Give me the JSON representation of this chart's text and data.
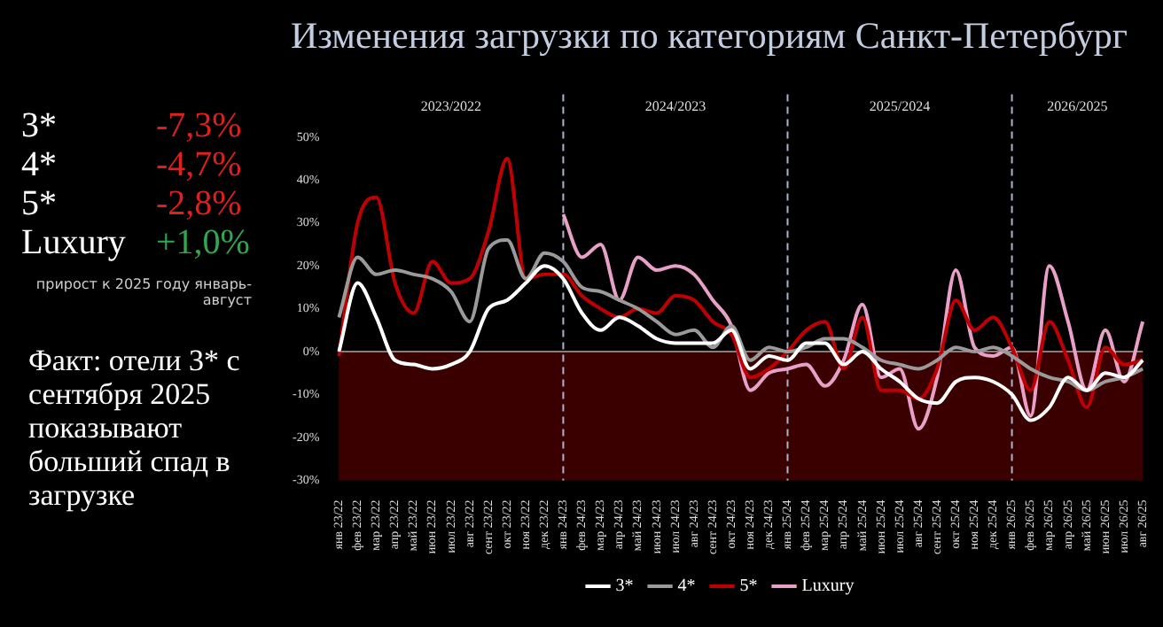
{
  "chart_data": [
    {
      "type": "other",
      "categories": [
        "3*",
        "4*",
        "5*",
        "Luxury"
      ],
      "value_labels": [
        "-7,3%",
        "-4,7%",
        "-2,8%",
        "+1,0%"
      ],
      "colors": [
        "#e0201c",
        "#e0201c",
        "#e0201c",
        "#2fa84f"
      ],
      "annotations": [
        "прирост к 2025 году январь-август",
        "Факт: отели 3* с сентября 2025 показывают больший спад в загрузке"
      ]
    },
    {
      "type": "line",
      "title": "Изменения загрузки по категориям Санкт-Петербург",
      "categories": [
        "янв 23/22",
        "фев 23/22",
        "мар 23/22",
        "апр 23/22",
        "май 23/22",
        "июн 23/22",
        "июл 23/22",
        "авг 23/22",
        "сент 23/22",
        "окт 23/22",
        "ноя 23/22",
        "дек 23/22",
        "янв 24/23",
        "фев 24/23",
        "мар 24/23",
        "апр 24/23",
        "май 24/23",
        "июн 24/23",
        "июл 24/23",
        "авг 24/23",
        "сент 24/23",
        "окт 24/23",
        "ноя 24/23",
        "дек 24/23",
        "янв 25/24",
        "фев 25/24",
        "мар 25/24",
        "апр 25/24",
        "май 25/24",
        "июн 25/24",
        "июл 25/24",
        "авг 25/24",
        "сент 25/24",
        "окт 25/24",
        "ноя 25/24",
        "дек 25/24",
        "янв 26/25",
        "фев 26/25",
        "мар 26/25",
        "апр 26/25",
        "май 26/25",
        "июн 26/25",
        "июл 26/25",
        "авг 26/25"
      ],
      "series": [
        {
          "name": "3*",
          "color": "#ffffff",
          "values": [
            0,
            16,
            8,
            -2,
            -3,
            -4,
            -3,
            0,
            10,
            12,
            16,
            20,
            17,
            9,
            5,
            8,
            6,
            3,
            2,
            2,
            2,
            5,
            -4,
            -1,
            -2,
            2,
            2,
            -3,
            0,
            -4,
            -7,
            -11,
            -12,
            -7,
            -6,
            -7,
            -10,
            -16,
            -13,
            -6,
            -9,
            -5,
            -6,
            -2
          ]
        },
        {
          "name": "4*",
          "color": "#9a9a9a",
          "values": [
            8,
            22,
            18,
            19,
            18,
            17,
            14,
            7,
            24,
            26,
            17,
            23,
            21,
            15,
            14,
            12,
            10,
            7,
            4,
            5,
            1,
            6,
            -2,
            1,
            0,
            1,
            3,
            3,
            1,
            -2,
            -3,
            -4,
            -2,
            1,
            0,
            1,
            -1,
            -4,
            -6,
            -7,
            -9,
            -7,
            -6,
            -4
          ]
        },
        {
          "name": "5*",
          "color": "#c00000",
          "values": [
            -1,
            30,
            36,
            16,
            9,
            21,
            16,
            17,
            28,
            45,
            17,
            18,
            18,
            13,
            10,
            8,
            10,
            9,
            13,
            12,
            7,
            4,
            -6,
            -4,
            0,
            5,
            7,
            -4,
            8,
            -9,
            -9,
            -11,
            -4,
            12,
            5,
            8,
            1,
            -9,
            7,
            -2,
            -13,
            1,
            -3,
            -2
          ]
        },
        {
          "name": "Luxury",
          "color": "#e8a0c8",
          "values": [
            null,
            null,
            null,
            null,
            null,
            null,
            null,
            null,
            null,
            null,
            null,
            null,
            32,
            22,
            25,
            12,
            22,
            19,
            20,
            18,
            12,
            6,
            -9,
            -5,
            -4,
            -3,
            -8,
            -2,
            11,
            -6,
            -4,
            -18,
            -6,
            19,
            1,
            -1,
            1,
            -15,
            20,
            7,
            -9,
            5,
            -7,
            7
          ]
        }
      ],
      "ylim": [
        -30,
        60
      ],
      "yticks": [
        {
          "value": -30,
          "label": "-30%"
        },
        {
          "value": -20,
          "label": "-20%"
        },
        {
          "value": -10,
          "label": "-10%"
        },
        {
          "value": 0,
          "label": "0%"
        },
        {
          "value": 10,
          "label": "10%"
        },
        {
          "value": 20,
          "label": "20%"
        },
        {
          "value": 30,
          "label": "30%"
        },
        {
          "value": 40,
          "label": "40%"
        },
        {
          "value": 50,
          "label": "50%"
        }
      ],
      "bands": [
        {
          "axis": "y",
          "from": -30,
          "to": 0,
          "color": "#3a0000"
        }
      ],
      "annotations": [
        "2023/2022",
        "2024/2023",
        "2025/2024",
        "2026/2025"
      ],
      "ref_lines": [
        {
          "axis": "y",
          "value": 0,
          "color": "#808080",
          "line_style": "solid"
        },
        {
          "axis": "x",
          "value": "янв 24/23",
          "color": "#aab4d0",
          "line_style": "dashed"
        },
        {
          "axis": "x",
          "value": "янв 25/24",
          "color": "#aab4d0",
          "line_style": "dashed"
        },
        {
          "axis": "x",
          "value": "янв 26/25",
          "color": "#aab4d0",
          "line_style": "dashed"
        }
      ],
      "grid": false,
      "legend": "bottom",
      "marker": "none",
      "line_style": "solid"
    }
  ]
}
